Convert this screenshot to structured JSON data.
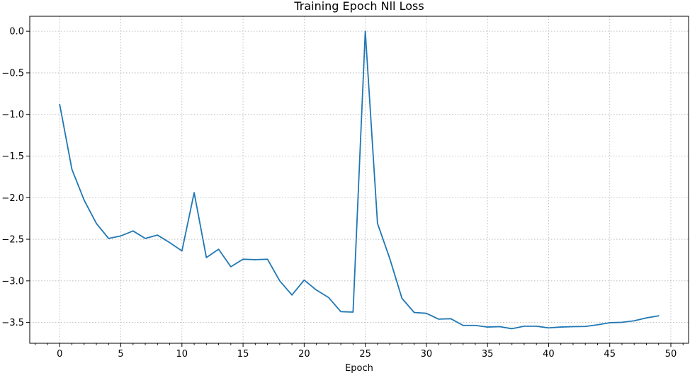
{
  "chart_data": {
    "type": "line",
    "title": "Training Epoch Nll Loss",
    "xlabel": "Epoch",
    "ylabel": "",
    "xlim": [
      -2.45,
      51.45
    ],
    "ylim": [
      -3.75,
      0.18
    ],
    "xticks": [
      0,
      5,
      10,
      15,
      20,
      25,
      30,
      35,
      40,
      45,
      50
    ],
    "yticks": [
      0.0,
      -0.5,
      -1.0,
      -1.5,
      -2.0,
      -2.5,
      -3.0,
      -3.5
    ],
    "xtick_labels": [
      "0",
      "5",
      "10",
      "15",
      "20",
      "25",
      "30",
      "35",
      "40",
      "45",
      "50"
    ],
    "ytick_labels": [
      "0.0",
      "−0.5",
      "−1.0",
      "−1.5",
      "−2.0",
      "−2.5",
      "−3.0",
      "−3.5"
    ],
    "grid": true,
    "color": "#1f77b4",
    "x": [
      0,
      1,
      2,
      3,
      4,
      5,
      6,
      7,
      8,
      9,
      10,
      11,
      12,
      13,
      14,
      15,
      16,
      17,
      18,
      19,
      20,
      21,
      22,
      23,
      24,
      25,
      26,
      27,
      28,
      29,
      30,
      31,
      32,
      33,
      34,
      35,
      36,
      37,
      38,
      39,
      40,
      41,
      42,
      43,
      44,
      45,
      46,
      47,
      48,
      49
    ],
    "values": [
      -0.88,
      -1.66,
      -2.03,
      -2.31,
      -2.49,
      -2.46,
      -2.4,
      -2.49,
      -2.45,
      -2.54,
      -2.64,
      -1.94,
      -2.72,
      -2.62,
      -2.83,
      -2.74,
      -2.745,
      -2.74,
      -3.0,
      -3.17,
      -2.99,
      -3.11,
      -3.2,
      -3.37,
      -3.375,
      0.0,
      -2.31,
      -2.73,
      -3.21,
      -3.38,
      -3.39,
      -3.46,
      -3.455,
      -3.535,
      -3.535,
      -3.555,
      -3.55,
      -3.575,
      -3.545,
      -3.545,
      -3.565,
      -3.555,
      -3.55,
      -3.548,
      -3.528,
      -3.503,
      -3.498,
      -3.48,
      -3.445,
      -3.42
    ]
  }
}
